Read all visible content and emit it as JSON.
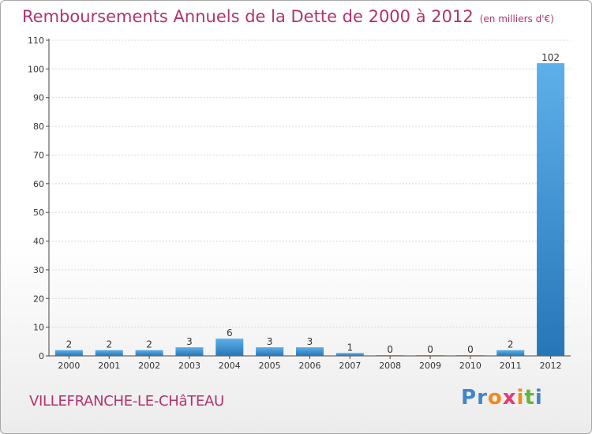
{
  "title": "Remboursements Annuels de la Dette de 2000 à 2012",
  "unit_note": "(en milliers d'€)",
  "commune": "VILLEFRANCHE-LE-CHâTEAU",
  "logo": {
    "letters": [
      "P",
      "r",
      "o",
      "x",
      "i",
      "t",
      "i"
    ],
    "colors": [
      "#3f86c8",
      "#3f86c8",
      "#f08a1c",
      "#e5397a",
      "#f08a1c",
      "#65b340",
      "#3f86c8"
    ]
  },
  "colors": {
    "title": "#b1336d",
    "bar_light": "#5eb0ea",
    "bar_dark": "#2676b8",
    "grid": "#d8d8d8"
  },
  "chart_data": {
    "type": "bar",
    "title": "Remboursements Annuels de la Dette de 2000 à 2012",
    "xlabel": "",
    "ylabel": "",
    "categories": [
      "2000",
      "2001",
      "2002",
      "2003",
      "2004",
      "2005",
      "2006",
      "2007",
      "2008",
      "2009",
      "2010",
      "2011",
      "2012"
    ],
    "values": [
      2,
      2,
      2,
      3,
      6,
      3,
      3,
      1,
      0,
      0,
      0,
      2,
      102
    ],
    "value_labels": [
      "2",
      "2",
      "2",
      "3",
      "6",
      "3",
      "3",
      "1",
      "0",
      "0",
      "0",
      "2",
      "102"
    ],
    "ylim": [
      0,
      110
    ],
    "yticks": [
      0,
      10,
      20,
      30,
      40,
      50,
      60,
      70,
      80,
      90,
      100,
      110
    ],
    "grid": true
  }
}
